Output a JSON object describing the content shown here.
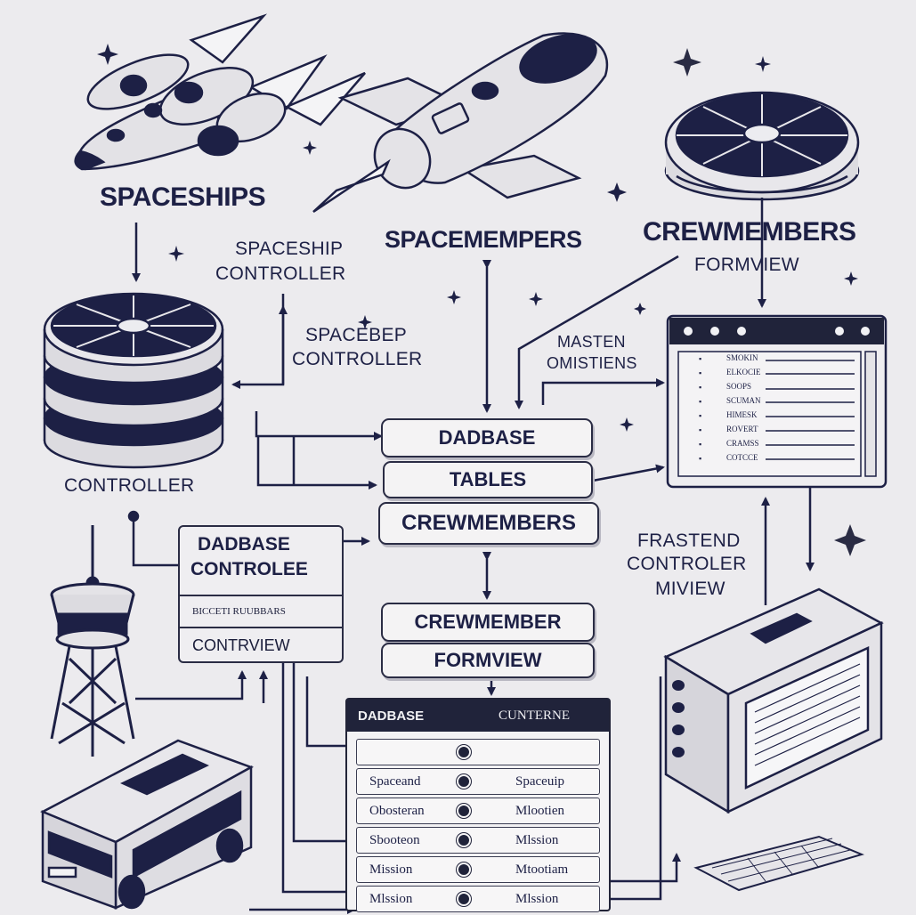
{
  "titles": {
    "spaceships": "SPACESHIPS",
    "spacemempers": "SPACEMEMPERS",
    "crewmembers": "CREWMEMBERS",
    "formview": "FORMVIEW",
    "spaceship_controller_line1": "SPACESHIP",
    "spaceship_controller_line2": "CONTROLLER",
    "spacebep_controller_line1": "SPACEBEP",
    "spacebep_controller_line2": "CONTROLLER",
    "masten_line1": "MASTEN",
    "masten_line2": "OMISTIENS",
    "controller": "CONTROLLER",
    "frastend_line1": "FRASTEND",
    "frastend_line2": "CONTROLER",
    "frastend_line3": "MIVIEW"
  },
  "center_stack": [
    "DADBASE",
    "TABLES",
    "CREWMEMBERS"
  ],
  "form_stack": [
    "CREWMEMBER",
    "FORMVIEW"
  ],
  "db_controller": {
    "title_line1": "DADBASE",
    "title_line2": "CONTROLEE",
    "row1": "BICCETI RUUBBARS",
    "row2": "CONTRVIEW"
  },
  "monitor_rows": [
    "SMOKIN",
    "ELKOCIE",
    "SOOPS",
    "SCUMAN",
    "HIMESK",
    "ROVERT",
    "CRAMSS",
    "COTCCE"
  ],
  "table": {
    "header_left": "DADBASE",
    "header_right": "CUNTERNE",
    "rows": [
      {
        "left": "",
        "right": ""
      },
      {
        "left": "Spaceand",
        "right": "Spaceuip"
      },
      {
        "left": "Obosteran",
        "right": "Mlootien"
      },
      {
        "left": "Sbooteon",
        "right": "Mlssion"
      },
      {
        "left": "Mission",
        "right": "Mtootiam"
      },
      {
        "left": "Mlssion",
        "right": "Mlssion"
      }
    ]
  },
  "colors": {
    "ink": "#1d2045",
    "background": "#ecebee",
    "panel": "#f4f3f4",
    "dark_fill": "#20233a"
  },
  "icons": [
    "rocket-icon",
    "starship-icon",
    "saucer-icon",
    "database-disk-icon",
    "window-monitor-icon",
    "server-icon",
    "keyboard-icon",
    "tower-icon",
    "van-icon",
    "sparkle-icon"
  ]
}
